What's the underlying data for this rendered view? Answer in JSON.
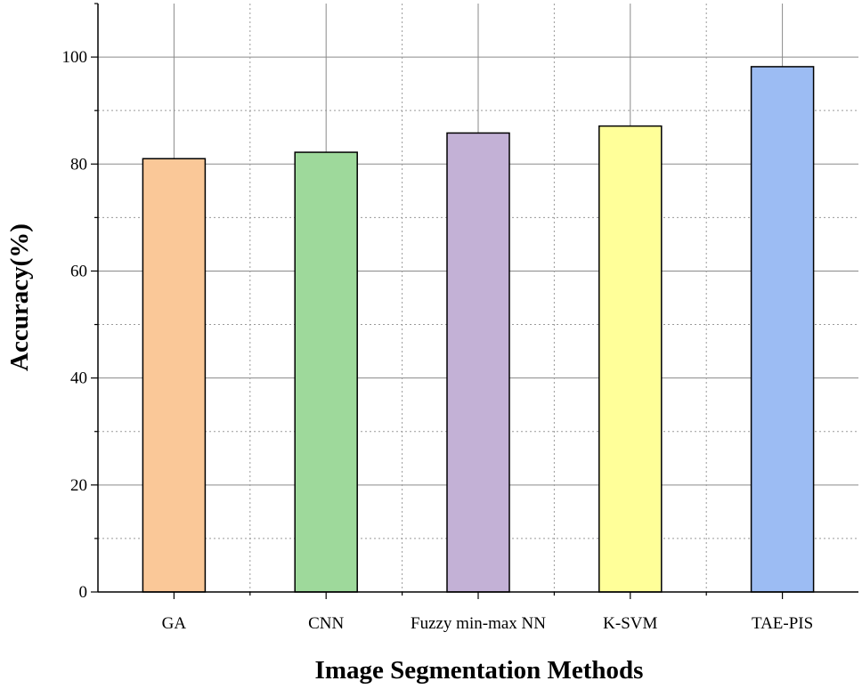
{
  "chart_data": {
    "type": "bar",
    "categories": [
      "GA",
      "CNN",
      "Fuzzy min-max NN",
      "K-SVM",
      "TAE-PIS"
    ],
    "values": [
      81,
      82.2,
      85.8,
      87.1,
      98.2
    ],
    "colors": [
      "#fac898",
      "#9ed99b",
      "#c3b1d6",
      "#ffff99",
      "#9cbcf3"
    ],
    "title": "",
    "xlabel": "Image Segmentation Methods",
    "ylabel": "Accuracy(%)",
    "ylim": [
      0,
      110
    ],
    "yticks": [
      "0",
      "20",
      "40",
      "60",
      "80",
      "100"
    ],
    "grid": true
  }
}
